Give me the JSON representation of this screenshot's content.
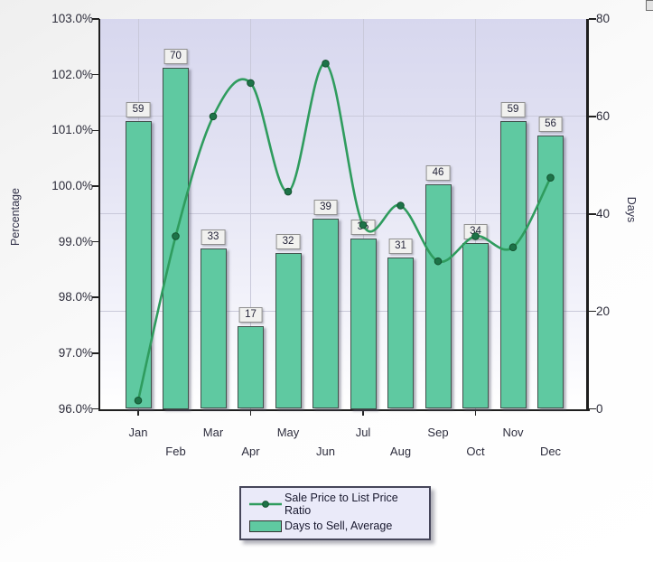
{
  "chart_data": {
    "type": "combo_bar_line",
    "categories": [
      "Jan",
      "Feb",
      "Mar",
      "Apr",
      "May",
      "Jun",
      "Jul",
      "Aug",
      "Sep",
      "Oct",
      "Nov",
      "Dec"
    ],
    "series": [
      {
        "name": "Sale Price to List Price Ratio",
        "type": "line",
        "axis": "left",
        "unit": "percent",
        "color": "#2f9c5e",
        "marker_color": "#1d7348",
        "values": [
          96.15,
          99.1,
          101.25,
          101.85,
          99.9,
          102.2,
          99.3,
          99.65,
          98.65,
          99.1,
          98.9,
          100.15
        ]
      },
      {
        "name": "Days to Sell, Average",
        "type": "bar",
        "axis": "right",
        "unit": "days",
        "color": "#5fc9a1",
        "values": [
          59,
          70,
          33,
          17,
          32,
          39,
          35,
          31,
          46,
          34,
          59,
          56
        ],
        "data_labels": [
          "59",
          "70",
          "33",
          "17",
          "32",
          "39",
          "35",
          "31",
          "46",
          "34",
          "59",
          "56"
        ]
      }
    ],
    "left_axis": {
      "label": "Percentage",
      "min": 96.0,
      "max": 103.0,
      "tick_step": 1.0,
      "tick_labels": [
        "103.0%",
        "102.0%",
        "101.0%",
        "100.0%",
        "99.0%",
        "98.0%",
        "97.0%",
        "96.0%"
      ]
    },
    "right_axis": {
      "label": "Days",
      "min": 0,
      "max": 80,
      "tick_step": 20,
      "tick_labels": [
        "80",
        "60",
        "40",
        "20",
        "0"
      ]
    },
    "x_axis": {
      "stagger_labels": true,
      "major_months": [
        "Jan",
        "Apr",
        "Jul",
        "Oct"
      ]
    },
    "grid": {
      "horizontal_at_days": [
        60,
        40,
        20
      ],
      "vertical_at_month_index": [
        0,
        3,
        6,
        9
      ]
    },
    "legend_position": "bottom"
  }
}
